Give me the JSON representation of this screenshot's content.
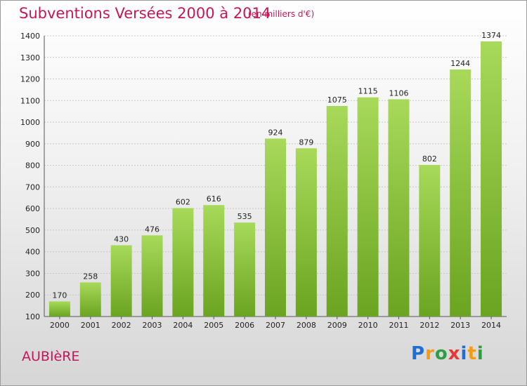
{
  "header": {
    "title": "Subventions Versées 2000 à 2014",
    "subtitle": "(en milliers d'€)"
  },
  "footer": {
    "commune": "AUBIèRE",
    "logo_text": "Proxiti"
  },
  "colors": {
    "bar_light": "#a8d95a",
    "bar_dark": "#6aa420",
    "title": "#c2185b"
  },
  "chart_data": {
    "type": "bar",
    "title": "Subventions Versées 2000 à 2014",
    "subtitle": "(en milliers d'€)",
    "categories": [
      "2000",
      "2001",
      "2002",
      "2003",
      "2004",
      "2005",
      "2006",
      "2007",
      "2008",
      "2009",
      "2010",
      "2011",
      "2012",
      "2013",
      "2014"
    ],
    "values": [
      170,
      258,
      430,
      476,
      602,
      616,
      535,
      924,
      879,
      1075,
      1115,
      1106,
      802,
      1244,
      1374
    ],
    "ylim": [
      100,
      1400
    ],
    "yticks": [
      100,
      200,
      300,
      400,
      500,
      600,
      700,
      800,
      900,
      1000,
      1100,
      1200,
      1300,
      1400
    ],
    "grid": true,
    "legend": "none"
  }
}
